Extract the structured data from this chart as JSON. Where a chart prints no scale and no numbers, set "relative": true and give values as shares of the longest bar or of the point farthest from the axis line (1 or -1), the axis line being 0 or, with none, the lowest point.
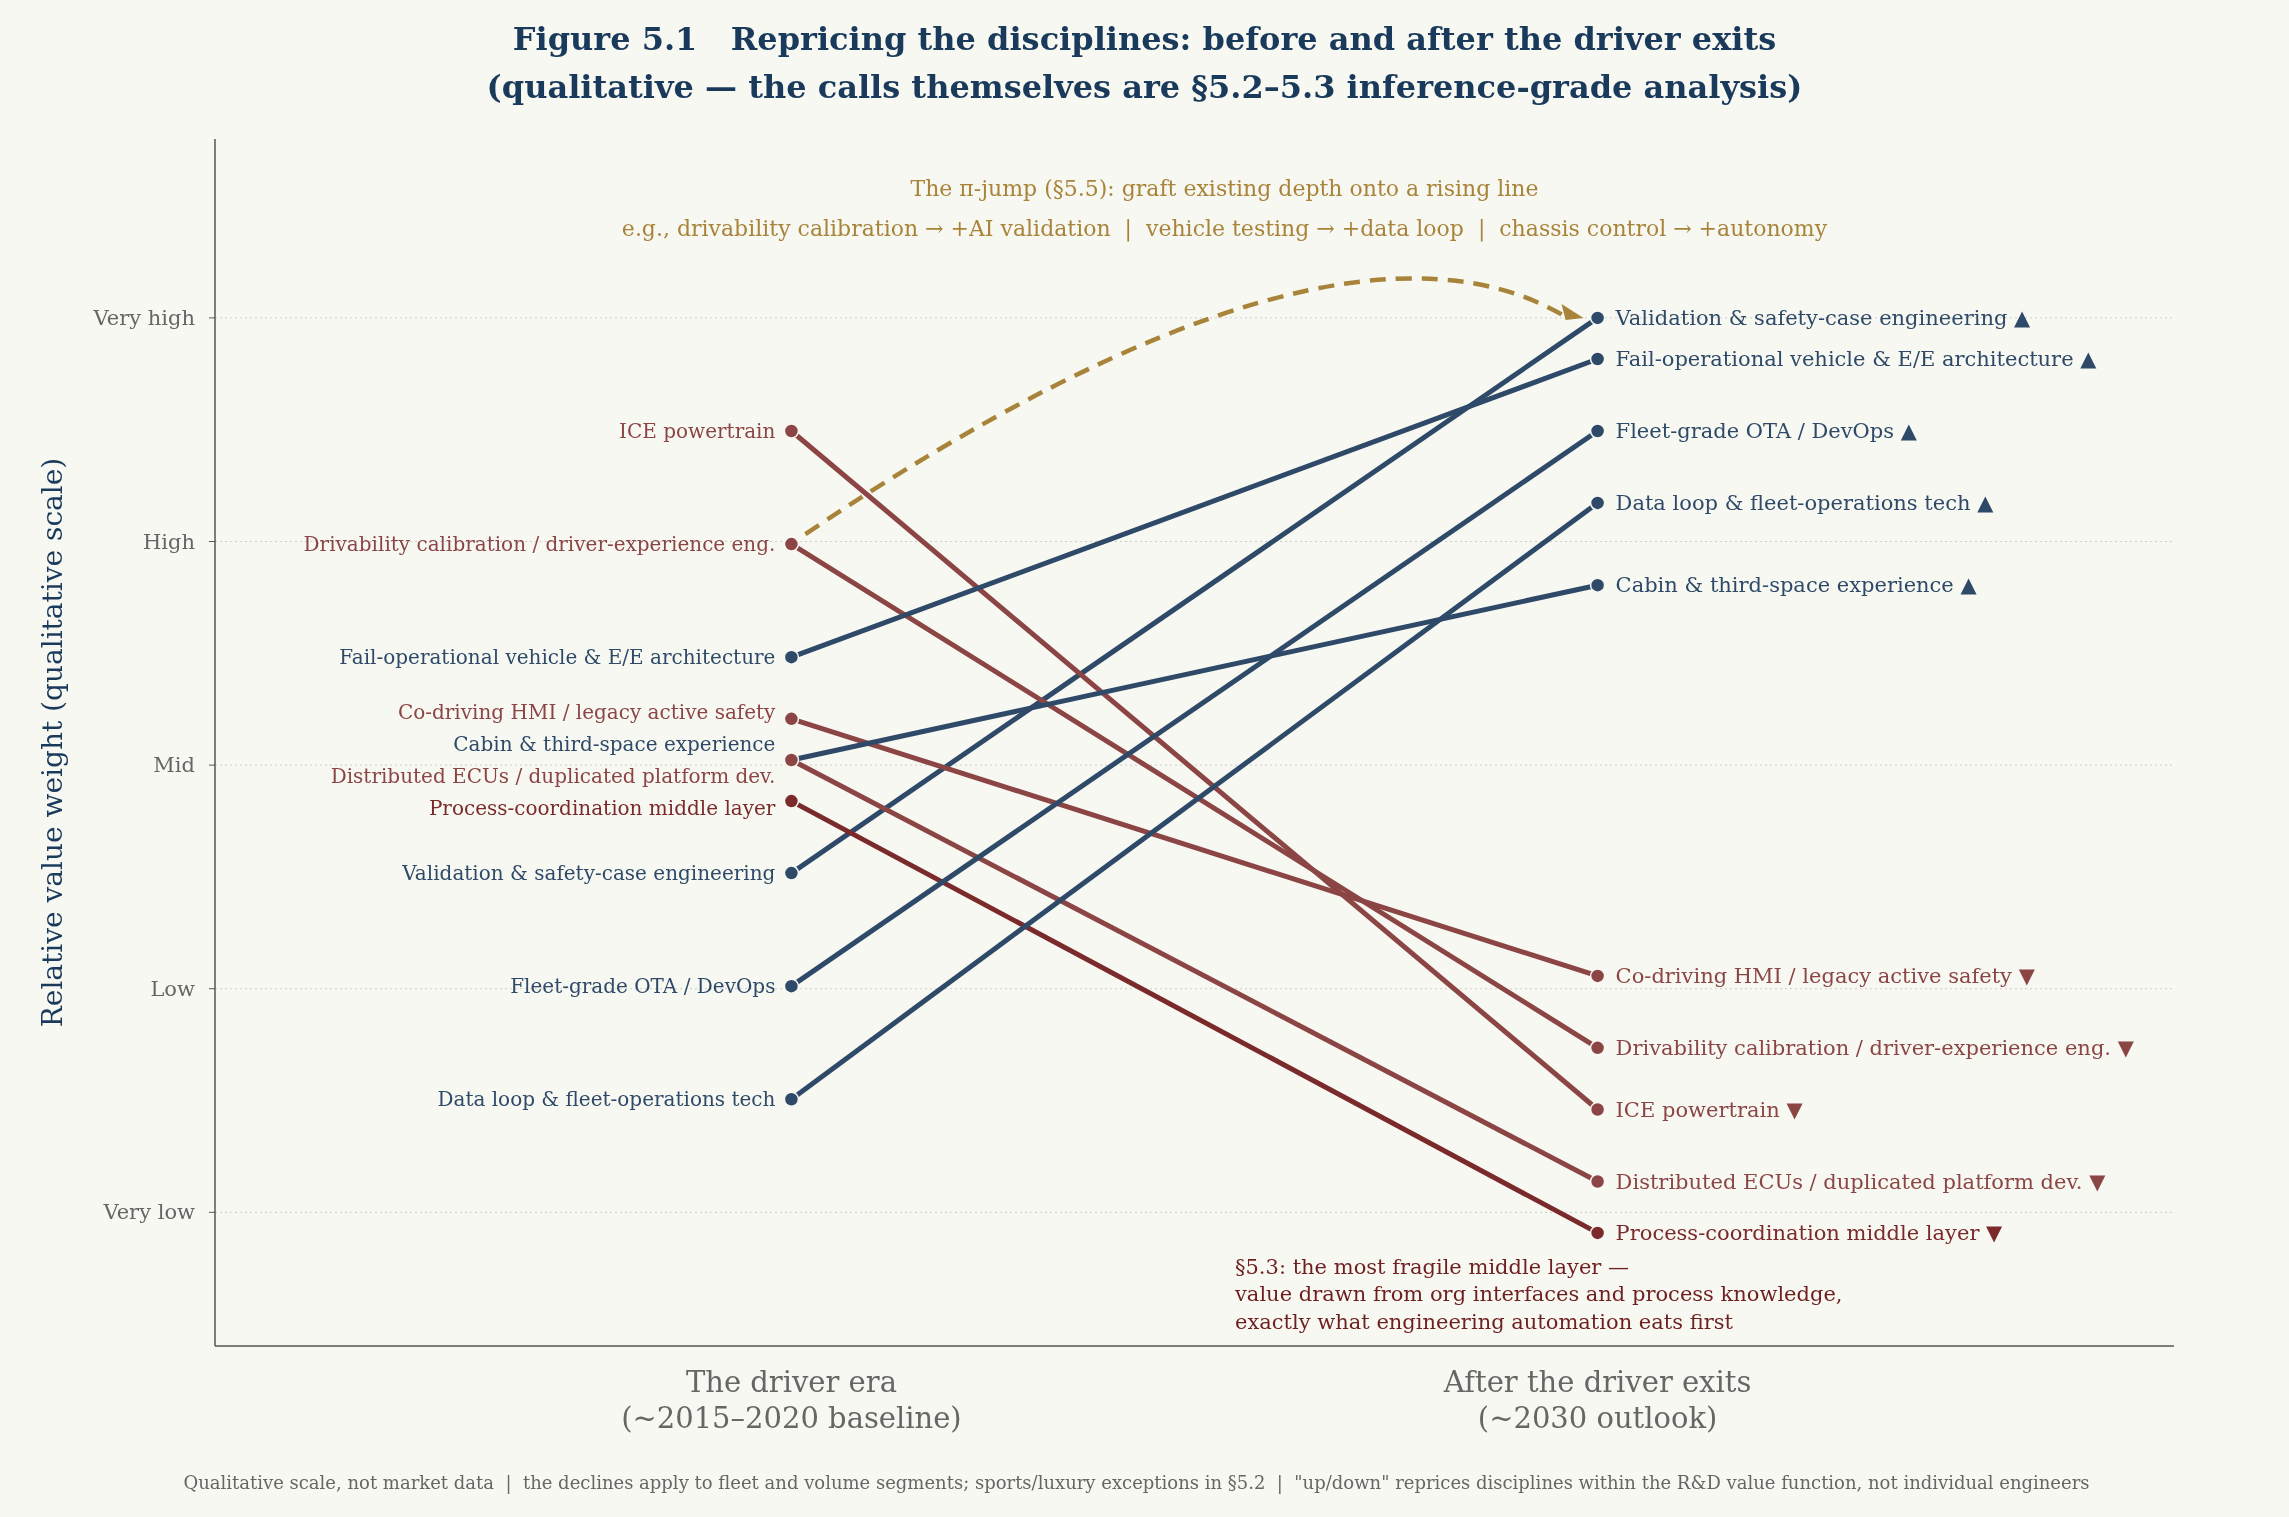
{
  "chart_data": {
    "type": "line",
    "title": "Figure 5.1   Repricing the disciplines: before and after the driver exits",
    "subtitle": "(qualitative — the calls themselves are §5.2–5.3 inference-grade analysis)",
    "categories": [
      "The driver era\n(~2015–2020 baseline)",
      "After the driver exits\n(~2030 outlook)"
    ],
    "relative": true,
    "grid": "y",
    "legend": false,
    "marker": "circle",
    "line_style": "solid",
    "series": [
      {
        "name": "Validation & safety-case engineering",
        "color": "#2e4a68",
        "values": [
          0.46,
          1
        ]
      },
      {
        "name": "Drivability calibration / driver-experience eng.",
        "color": "#8b4545",
        "values": [
          0.78,
          0.29
        ]
      },
      {
        "name": "ICE powertrain",
        "color": "#8b4545",
        "values": [
          0.89,
          0.23
        ]
      },
      {
        "name": "Fail-operational vehicle & E/E architecture",
        "color": "#2e4a68",
        "values": [
          0.67,
          0.96
        ]
      },
      {
        "name": "Co-driving HMI / legacy active safety",
        "color": "#8b4545",
        "values": [
          0.61,
          0.36
        ]
      },
      {
        "name": "Cabin & third-space experience",
        "color": "#2e4a68",
        "values": [
          0.57,
          0.74
        ]
      },
      {
        "name": "Distributed ECUs / duplicated platform dev.",
        "color": "#8b4545",
        "values": [
          0.57,
          0.16
        ]
      },
      {
        "name": "Process-coordination middle layer",
        "color": "#7a2a2a",
        "values": [
          0.53,
          0.11
        ]
      },
      {
        "name": "Fleet-grade OTA / DevOps",
        "color": "#2e4a68",
        "values": [
          0.35,
          0.89
        ]
      },
      {
        "name": "Data loop & fleet-operations tech",
        "color": "#2e4a68",
        "values": [
          0.24,
          0.82
        ]
      }
    ],
    "annotations": [
      "The π-jump (§5.5): graft existing depth onto a rising line",
      "e.g., drivability calibration → +AI validation  |  vehicle testing → +data loop  |  chassis control → +autonomy",
      "§5.3: the most fragile middle layer —\nvalue drawn from org interfaces and process knowledge,\nexactly what engineering automation eats first",
      "Qualitative scale, not market data  |  the declines apply to fleet and volume segments; sports/luxury exceptions in §5.2  |  \"up/down\" reprices disciplines within the R&D value function, not individual engineers",
      "Very low",
      "Low",
      "Mid",
      "High",
      "Very high",
      "Relative value weight (qualitative scale)",
      {
        "text": "Validation & safety-case engineering ▲",
        "x": "After the driver exits\n(~2030 outlook)",
        "y": 1
      },
      {
        "text": "Fail-operational vehicle & E/E architecture ▲",
        "x": "After the driver exits\n(~2030 outlook)",
        "y": 0.96
      },
      {
        "text": "Fleet-grade OTA / DevOps ▲",
        "x": "After the driver exits\n(~2030 outlook)",
        "y": 0.89
      },
      {
        "text": "Data loop & fleet-operations tech ▲",
        "x": "After the driver exits\n(~2030 outlook)",
        "y": 0.82
      },
      {
        "text": "Cabin & third-space experience ▲",
        "x": "After the driver exits\n(~2030 outlook)",
        "y": 0.74
      },
      {
        "text": "Co-driving HMI / legacy active safety ▼",
        "x": "After the driver exits\n(~2030 outlook)",
        "y": 0.36
      },
      {
        "text": "Drivability calibration / driver-experience eng. ▼",
        "x": "After the driver exits\n(~2030 outlook)",
        "y": 0.29
      },
      {
        "text": "ICE powertrain ▼",
        "x": "After the driver exits\n(~2030 outlook)",
        "y": 0.23
      },
      {
        "text": "Distributed ECUs / duplicated platform dev. ▼",
        "x": "After the driver exits\n(~2030 outlook)",
        "y": 0.16
      },
      {
        "text": "Process-coordination middle layer ▼",
        "x": "After the driver exits\n(~2030 outlook)",
        "y": 0.11
      }
    ]
  }
}
